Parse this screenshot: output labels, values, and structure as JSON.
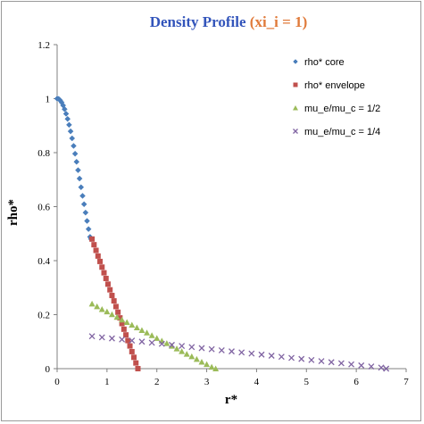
{
  "chart_data": {
    "type": "scatter",
    "title_part1": "Density Profile ",
    "title_part2": "(xi_i = 1)",
    "title_color1": "#3355bb",
    "title_color2": "#e07a3a",
    "xlabel": "r*",
    "ylabel": "rho*",
    "xlim": [
      0,
      7
    ],
    "ylim": [
      0,
      1.2
    ],
    "xticks": [
      0,
      1,
      2,
      3,
      4,
      5,
      6,
      7
    ],
    "xtick_labels": [
      "0",
      "1",
      "2",
      "3",
      "4",
      "5",
      "6",
      "7"
    ],
    "yticks": [
      0,
      0.2,
      0.4,
      0.6,
      0.8,
      1,
      1.2
    ],
    "ytick_labels": [
      "0",
      "0.2",
      "0.4",
      "0.6",
      "0.8",
      "1",
      "1.2"
    ],
    "grid": false,
    "legend_position": "top-right",
    "series": [
      {
        "name": "rho* core",
        "color": "#4a7ebb",
        "marker": "diamond",
        "x": [
          0.0,
          0.03,
          0.06,
          0.09,
          0.12,
          0.15,
          0.18,
          0.21,
          0.24,
          0.27,
          0.3,
          0.33,
          0.36,
          0.39,
          0.42,
          0.45,
          0.48,
          0.51,
          0.54,
          0.57,
          0.6,
          0.63,
          0.66,
          0.68
        ],
        "y": [
          1.0,
          0.999,
          0.994,
          0.986,
          0.975,
          0.961,
          0.944,
          0.925,
          0.903,
          0.879,
          0.853,
          0.825,
          0.796,
          0.766,
          0.735,
          0.704,
          0.672,
          0.64,
          0.609,
          0.578,
          0.547,
          0.517,
          0.488,
          0.48
        ]
      },
      {
        "name": "rho* envelope",
        "color": "#c0504d",
        "marker": "square",
        "x": [
          0.7,
          0.74,
          0.78,
          0.82,
          0.86,
          0.9,
          0.94,
          0.98,
          1.02,
          1.06,
          1.1,
          1.14,
          1.18,
          1.22,
          1.26,
          1.3,
          1.34,
          1.38,
          1.42,
          1.46,
          1.5,
          1.54,
          1.58,
          1.62
        ],
        "y": [
          0.48,
          0.459,
          0.438,
          0.417,
          0.397,
          0.376,
          0.355,
          0.334,
          0.313,
          0.292,
          0.271,
          0.251,
          0.23,
          0.209,
          0.188,
          0.167,
          0.146,
          0.125,
          0.104,
          0.084,
          0.063,
          0.042,
          0.021,
          0.0
        ]
      },
      {
        "name": "mu_e/mu_c = 1/2",
        "color": "#9bbb59",
        "marker": "triangle",
        "x": [
          0.7,
          0.8,
          0.9,
          1.0,
          1.1,
          1.2,
          1.3,
          1.4,
          1.5,
          1.6,
          1.7,
          1.8,
          1.9,
          2.0,
          2.1,
          2.2,
          2.3,
          2.4,
          2.5,
          2.6,
          2.7,
          2.8,
          2.9,
          3.0,
          3.1,
          3.18
        ],
        "y": [
          0.24,
          0.23,
          0.22,
          0.211,
          0.201,
          0.191,
          0.181,
          0.172,
          0.162,
          0.152,
          0.142,
          0.133,
          0.123,
          0.113,
          0.103,
          0.094,
          0.084,
          0.074,
          0.064,
          0.054,
          0.045,
          0.035,
          0.025,
          0.016,
          0.006,
          0.0
        ]
      },
      {
        "name": "mu_e/mu_c = 1/4",
        "color": "#8064a2",
        "marker": "x",
        "x": [
          0.7,
          0.9,
          1.1,
          1.3,
          1.5,
          1.7,
          1.9,
          2.1,
          2.3,
          2.5,
          2.7,
          2.9,
          3.1,
          3.3,
          3.5,
          3.7,
          3.9,
          4.1,
          4.3,
          4.5,
          4.7,
          4.9,
          5.1,
          5.3,
          5.5,
          5.7,
          5.9,
          6.1,
          6.3,
          6.5,
          6.6
        ],
        "y": [
          0.12,
          0.116,
          0.112,
          0.108,
          0.104,
          0.1,
          0.096,
          0.092,
          0.088,
          0.084,
          0.08,
          0.076,
          0.072,
          0.068,
          0.064,
          0.06,
          0.056,
          0.052,
          0.048,
          0.044,
          0.04,
          0.036,
          0.032,
          0.028,
          0.024,
          0.02,
          0.016,
          0.012,
          0.008,
          0.004,
          0.0
        ]
      }
    ]
  }
}
